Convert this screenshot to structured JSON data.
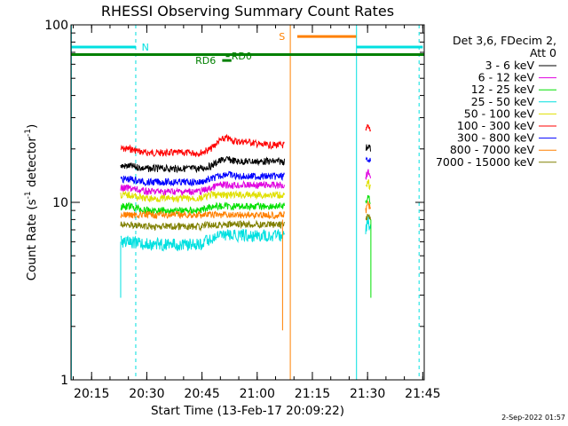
{
  "chart_data": {
    "type": "line",
    "title": "RHESSI Observing Summary Count Rates",
    "xlabel": "Start Time (13-Feb-17 20:09:22)",
    "ylabel_main": "Count Rate (s",
    "ylabel_sup": "-1",
    "ylabel_mid": " detector",
    "ylabel_end": ")",
    "x_unit": "minutes after 20:09:22",
    "xlim": [
      0,
      96
    ],
    "ylim": [
      1,
      100
    ],
    "y_scale": "log",
    "grid": false,
    "x_ticks": [
      {
        "value": 5.6,
        "label": "20:15"
      },
      {
        "value": 20.6,
        "label": "20:30"
      },
      {
        "value": 35.6,
        "label": "20:45"
      },
      {
        "value": 50.6,
        "label": "21:00"
      },
      {
        "value": 65.6,
        "label": "21:15"
      },
      {
        "value": 80.6,
        "label": "21:30"
      },
      {
        "value": 95.6,
        "label": "21:45"
      }
    ],
    "y_ticks": [
      {
        "value": 1,
        "label": "1"
      },
      {
        "value": 10,
        "label": "10"
      },
      {
        "value": 100,
        "label": "100"
      }
    ],
    "legend": {
      "position": "right",
      "header": [
        "Det 3,6, FDecim 2,",
        "Att 0"
      ],
      "entries": [
        {
          "label": "3 - 6 keV",
          "color": "#000000"
        },
        {
          "label": "6 - 12 keV",
          "color": "#e000e0"
        },
        {
          "label": "12 - 25 keV",
          "color": "#00e000"
        },
        {
          "label": "25 - 50 keV",
          "color": "#00e0e0"
        },
        {
          "label": "50 - 100 keV",
          "color": "#e0e000"
        },
        {
          "label": "100 - 300 keV",
          "color": "#ff0000"
        },
        {
          "label": "300 - 800 keV",
          "color": "#0000ff"
        },
        {
          "label": "800 - 7000 keV",
          "color": "#ff8000"
        },
        {
          "label": "7000 - 15000 keV",
          "color": "#808000"
        }
      ]
    },
    "series": [
      {
        "name": "100 - 300 keV",
        "color": "#ff0000",
        "segments": [
          {
            "x": [
              13.5,
              16,
              20,
              25,
              30,
              35,
              38,
              40,
              42,
              45,
              48,
              52,
              55,
              58
            ],
            "y": [
              20,
              20,
              19,
              19,
              19,
              19,
              20,
              22,
              23,
              22,
              22,
              21,
              21,
              21
            ]
          },
          {
            "x": [
              80.1,
              80.7,
              81.3
            ],
            "y": [
              25,
              27,
              26
            ]
          }
        ]
      },
      {
        "name": "3 - 6 keV",
        "color": "#000000",
        "segments": [
          {
            "x": [
              13.5,
              16,
              20,
              25,
              30,
              35,
              38,
              40,
              42,
              45,
              48,
              52,
              55,
              58
            ],
            "y": [
              16,
              16,
              15.5,
              15.5,
              15.5,
              15.5,
              16,
              17,
              17.5,
              17,
              17,
              17,
              17,
              17
            ]
          },
          {
            "x": [
              80.1,
              80.7,
              81.3
            ],
            "y": [
              20,
              21,
              20
            ]
          }
        ]
      },
      {
        "name": "300 - 800 keV",
        "color": "#0000ff",
        "segments": [
          {
            "x": [
              13.5,
              16,
              20,
              25,
              30,
              35,
              38,
              40,
              42,
              45,
              48,
              52,
              55,
              58
            ],
            "y": [
              13.5,
              13.5,
              13,
              13,
              13,
              13,
              13.5,
              14,
              14.5,
              14,
              14,
              14,
              14,
              14
            ]
          },
          {
            "x": [
              80.1,
              80.7,
              81.3
            ],
            "y": [
              17,
              18,
              17
            ]
          }
        ]
      },
      {
        "name": "6 - 12 keV",
        "color": "#e000e0",
        "segments": [
          {
            "x": [
              13.5,
              16,
              20,
              25,
              30,
              35,
              38,
              40,
              42,
              45,
              48,
              52,
              55,
              58
            ],
            "y": [
              12,
              12,
              11.5,
              11.5,
              11.5,
              11.5,
              12,
              12.5,
              12.5,
              12.5,
              12.5,
              12.5,
              12.5,
              12.5
            ]
          },
          {
            "x": [
              80.1,
              80.7,
              81.3
            ],
            "y": [
              14,
              15,
              14
            ]
          }
        ]
      },
      {
        "name": "50 - 100 keV",
        "color": "#e0e000",
        "segments": [
          {
            "x": [
              13.5,
              16,
              20,
              25,
              30,
              35,
              38,
              40,
              42,
              45,
              48,
              52,
              55,
              58
            ],
            "y": [
              11,
              11,
              10.5,
              10.5,
              10.5,
              10.5,
              11,
              11,
              11,
              11,
              11,
              11,
              11,
              11
            ]
          },
          {
            "x": [
              80.1,
              80.7,
              81.3
            ],
            "y": [
              12,
              13,
              12
            ]
          }
        ]
      },
      {
        "name": "12 - 25 keV",
        "color": "#00e000",
        "segments": [
          {
            "x": [
              13.5,
              16,
              20,
              25,
              30,
              35,
              38,
              40,
              42,
              45,
              48,
              52,
              55,
              58
            ],
            "y": [
              9.5,
              9.5,
              9,
              9,
              9,
              9,
              9.5,
              9.5,
              9.5,
              9.5,
              9.5,
              9.5,
              9.5,
              9.5
            ]
          },
          {
            "x": [
              80.1,
              80.7,
              81.3
            ],
            "y": [
              10,
              11,
              10
            ]
          }
        ]
      },
      {
        "name": "800 - 7000 keV",
        "color": "#ff8000",
        "segments": [
          {
            "x": [
              13.5,
              16,
              20,
              25,
              30,
              35,
              38,
              40,
              42,
              45,
              48,
              52,
              55,
              58
            ],
            "y": [
              8.5,
              8.5,
              8.5,
              8.5,
              8.5,
              8.5,
              8.5,
              8.5,
              8.5,
              8.5,
              8.5,
              8.5,
              8.5,
              8.5
            ]
          },
          {
            "x": [
              80.1,
              80.7,
              81.3
            ],
            "y": [
              9,
              10,
              9
            ]
          }
        ]
      },
      {
        "name": "7000 - 15000 keV",
        "color": "#808000",
        "segments": [
          {
            "x": [
              13.5,
              16,
              20,
              25,
              30,
              35,
              38,
              40,
              42,
              45,
              48,
              52,
              55,
              58
            ],
            "y": [
              7.5,
              7.5,
              7.3,
              7.3,
              7.3,
              7.3,
              7.5,
              7.5,
              7.5,
              7.5,
              7.5,
              7.5,
              7.5,
              7.5
            ]
          },
          {
            "x": [
              80.1,
              80.7,
              81.3
            ],
            "y": [
              8,
              8.5,
              8
            ]
          }
        ]
      },
      {
        "name": "25 - 50 keV",
        "color": "#00e0e0",
        "segments": [
          {
            "x": [
              13.5,
              16,
              20,
              25,
              30,
              35,
              38,
              40,
              42,
              45,
              48,
              52,
              55,
              58
            ],
            "y": [
              6,
              6,
              5.8,
              5.8,
              5.8,
              5.8,
              6.2,
              6.5,
              6.5,
              6.5,
              6.5,
              6.5,
              6.5,
              6.5
            ]
          },
          {
            "x": [
              80.1,
              80.7,
              81.3
            ],
            "y": [
              7,
              8,
              7
            ]
          }
        ]
      }
    ],
    "drops": [
      {
        "x": 13.5,
        "y_top": 6.0,
        "y_bot": 2.9,
        "color": "#00e0e0"
      },
      {
        "x": 57.5,
        "y_top": 8.0,
        "y_bot": 1.9,
        "color": "#ff8000"
      },
      {
        "x": 81.5,
        "y_top": 8.0,
        "y_bot": 2.9,
        "color": "#00e000"
      }
    ],
    "vlines": [
      {
        "x": 0.1,
        "color": "#00e0e0",
        "style": "solid"
      },
      {
        "x": 17.6,
        "color": "#00e0e0",
        "style": "dashed"
      },
      {
        "x": 59.6,
        "color": "#ff8000",
        "style": "solid"
      },
      {
        "x": 77.6,
        "color": "#00e0e0",
        "style": "solid"
      },
      {
        "x": 94.6,
        "color": "#00e0e0",
        "style": "dashed"
      }
    ],
    "flags": [
      {
        "x1": 0,
        "x2": 17.6,
        "y": 75,
        "color": "#00e0e0",
        "label": "N",
        "label_x": 19.2
      },
      {
        "x1": 77.6,
        "x2": 95.6,
        "y": 75,
        "color": "#00e0e0",
        "label": "",
        "label_x": 0
      },
      {
        "x1": 0,
        "x2": 96,
        "y": 68,
        "color": "#008000",
        "label": "",
        "label_x": 0
      },
      {
        "x1": 61.5,
        "x2": 77.5,
        "y": 86,
        "color": "#ff8000",
        "label": "S",
        "label_x": 56.5
      },
      {
        "x1": 41.1,
        "x2": 43.6,
        "y": 63,
        "color": "#008000",
        "label": "RD6",
        "label_x": 33.8
      },
      {
        "x1": 42.1,
        "x2": 43.1,
        "y": 67,
        "color": "#008000",
        "label": "RD0",
        "label_x": 43.6
      }
    ],
    "timestamp": "2-Sep-2022 01:57"
  }
}
